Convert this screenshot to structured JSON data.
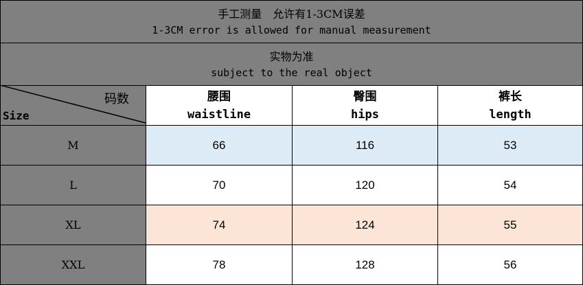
{
  "notes": {
    "line1_cn": "手工测量　允许有1-3CM误差",
    "line1_en": "1-3CM error is allowed for manual measurement",
    "line2_cn": "实物为准",
    "line2_en": "subject to the real object"
  },
  "table": {
    "corner": {
      "top_label": "码数",
      "bottom_label": "Size"
    },
    "columns": [
      {
        "cn": "腰围",
        "en": "waistline"
      },
      {
        "cn": "臀围",
        "en": "hips"
      },
      {
        "cn": "裤长",
        "en": "length"
      }
    ],
    "rows": [
      {
        "size": "M",
        "values": [
          "66",
          "116",
          "53"
        ]
      },
      {
        "size": "L",
        "values": [
          "70",
          "120",
          "54"
        ]
      },
      {
        "size": "XL",
        "values": [
          "74",
          "124",
          "55"
        ]
      },
      {
        "size": "XXL",
        "values": [
          "78",
          "128",
          "56"
        ]
      }
    ]
  },
  "colors": {
    "header_gray": "#808080",
    "row_blue": "#ddebf7",
    "row_peach": "#fce4d6"
  }
}
